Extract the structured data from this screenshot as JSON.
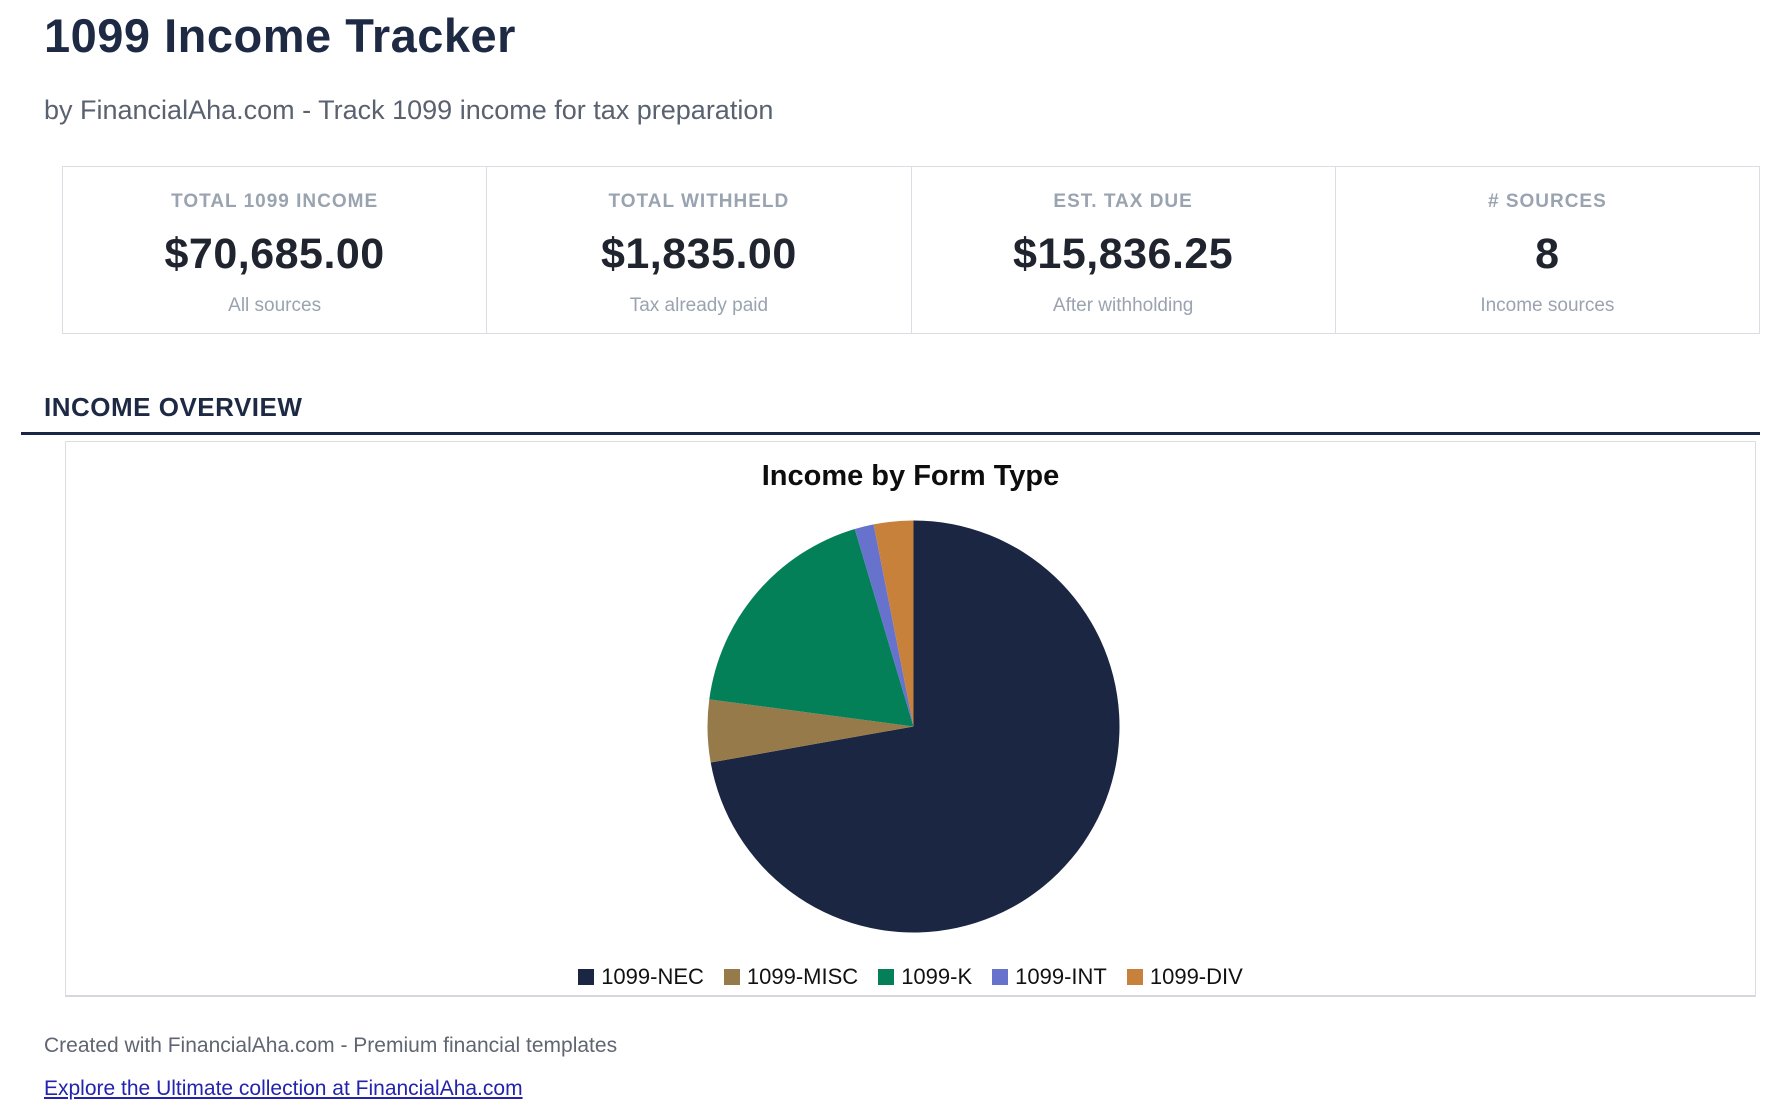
{
  "page": {
    "title": "1099 Income Tracker",
    "subtitle": "by FinancialAha.com - Track 1099 income for tax preparation",
    "section_heading": "INCOME OVERVIEW",
    "footer_note": "Created with FinancialAha.com - Premium financial templates",
    "footer_link": "Explore the Ultimate collection at FinancialAha.com"
  },
  "colors": {
    "heading_navy": "#1e2a44",
    "section_rule": "#1a2744",
    "muted_gray": "#9aa3b0",
    "value_dark": "#20242e",
    "card_border": "#dadde2",
    "link_blue": "#2323ae"
  },
  "cards": [
    {
      "label": "TOTAL 1099 INCOME",
      "value": "$70,685.00",
      "sublabel": "All sources"
    },
    {
      "label": "TOTAL WITHHELD",
      "value": "$1,835.00",
      "sublabel": "Tax already paid"
    },
    {
      "label": "EST. TAX DUE",
      "value": "$15,836.25",
      "sublabel": "After withholding"
    },
    {
      "label": "# SOURCES",
      "value": "8",
      "sublabel": "Income sources"
    }
  ],
  "chart_data": {
    "type": "pie",
    "title": "Income by Form Type",
    "legend_position": "bottom",
    "start_angle": "top",
    "direction": "clockwise",
    "slices": [
      {
        "label": "1099-NEC",
        "pct_est": 72.2,
        "color": "#1b2642"
      },
      {
        "label": "1099-MISC",
        "pct_est": 4.9,
        "color": "#977a4a"
      },
      {
        "label": "1099-K",
        "pct_est": 18.3,
        "color": "#048059"
      },
      {
        "label": "1099-INT",
        "pct_est": 1.5,
        "color": "#6672cc"
      },
      {
        "label": "1099-DIV",
        "pct_est": 3.1,
        "color": "#c8813a"
      }
    ]
  }
}
